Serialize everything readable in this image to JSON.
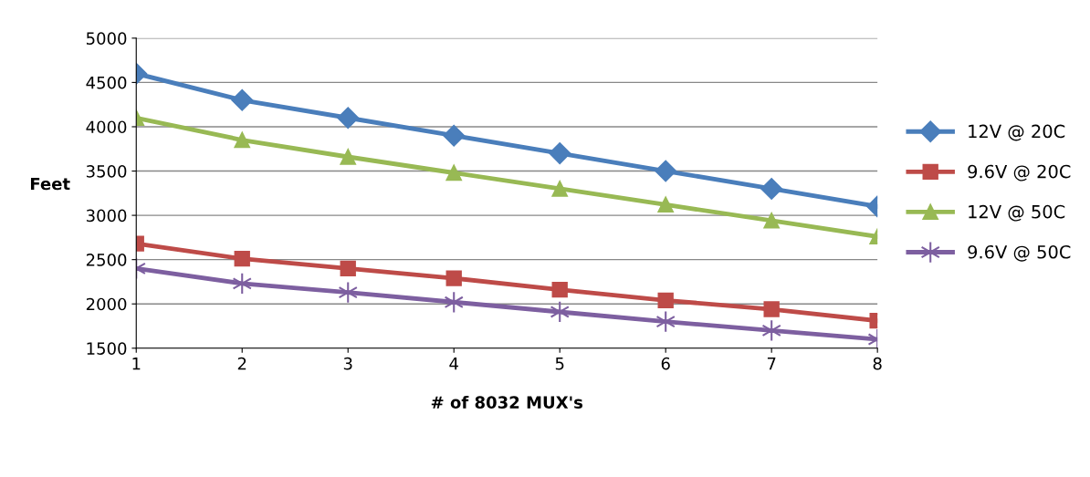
{
  "chart_data": {
    "type": "line",
    "xlabel": "# of 8032 MUX's",
    "ylabel": "Feet",
    "categories": [
      "1",
      "2",
      "3",
      "4",
      "5",
      "6",
      "7",
      "8"
    ],
    "series": [
      {
        "name": "12V @ 20C",
        "color": "#4a7ebb",
        "marker": "diamond",
        "values": [
          4600,
          4300,
          4100,
          3900,
          3700,
          3500,
          3300,
          3100
        ]
      },
      {
        "name": "9.6V @ 20C",
        "color": "#be4b48",
        "marker": "square",
        "values": [
          2680,
          2510,
          2400,
          2290,
          2160,
          2040,
          1940,
          1810
        ]
      },
      {
        "name": "12V @ 50C",
        "color": "#98b954",
        "marker": "triangle",
        "values": [
          4100,
          3850,
          3660,
          3480,
          3300,
          3120,
          2940,
          2760
        ]
      },
      {
        "name": "9.6V @ 50C",
        "color": "#7d5fa0",
        "marker": "cross",
        "values": [
          2400,
          2230,
          2130,
          2020,
          1910,
          1800,
          1700,
          1600
        ]
      }
    ],
    "ylim": [
      1500,
      5000
    ],
    "yticks": [
      1500,
      2000,
      2500,
      3000,
      3500,
      4000,
      4500,
      5000
    ],
    "grid": "y",
    "legend": "right"
  }
}
